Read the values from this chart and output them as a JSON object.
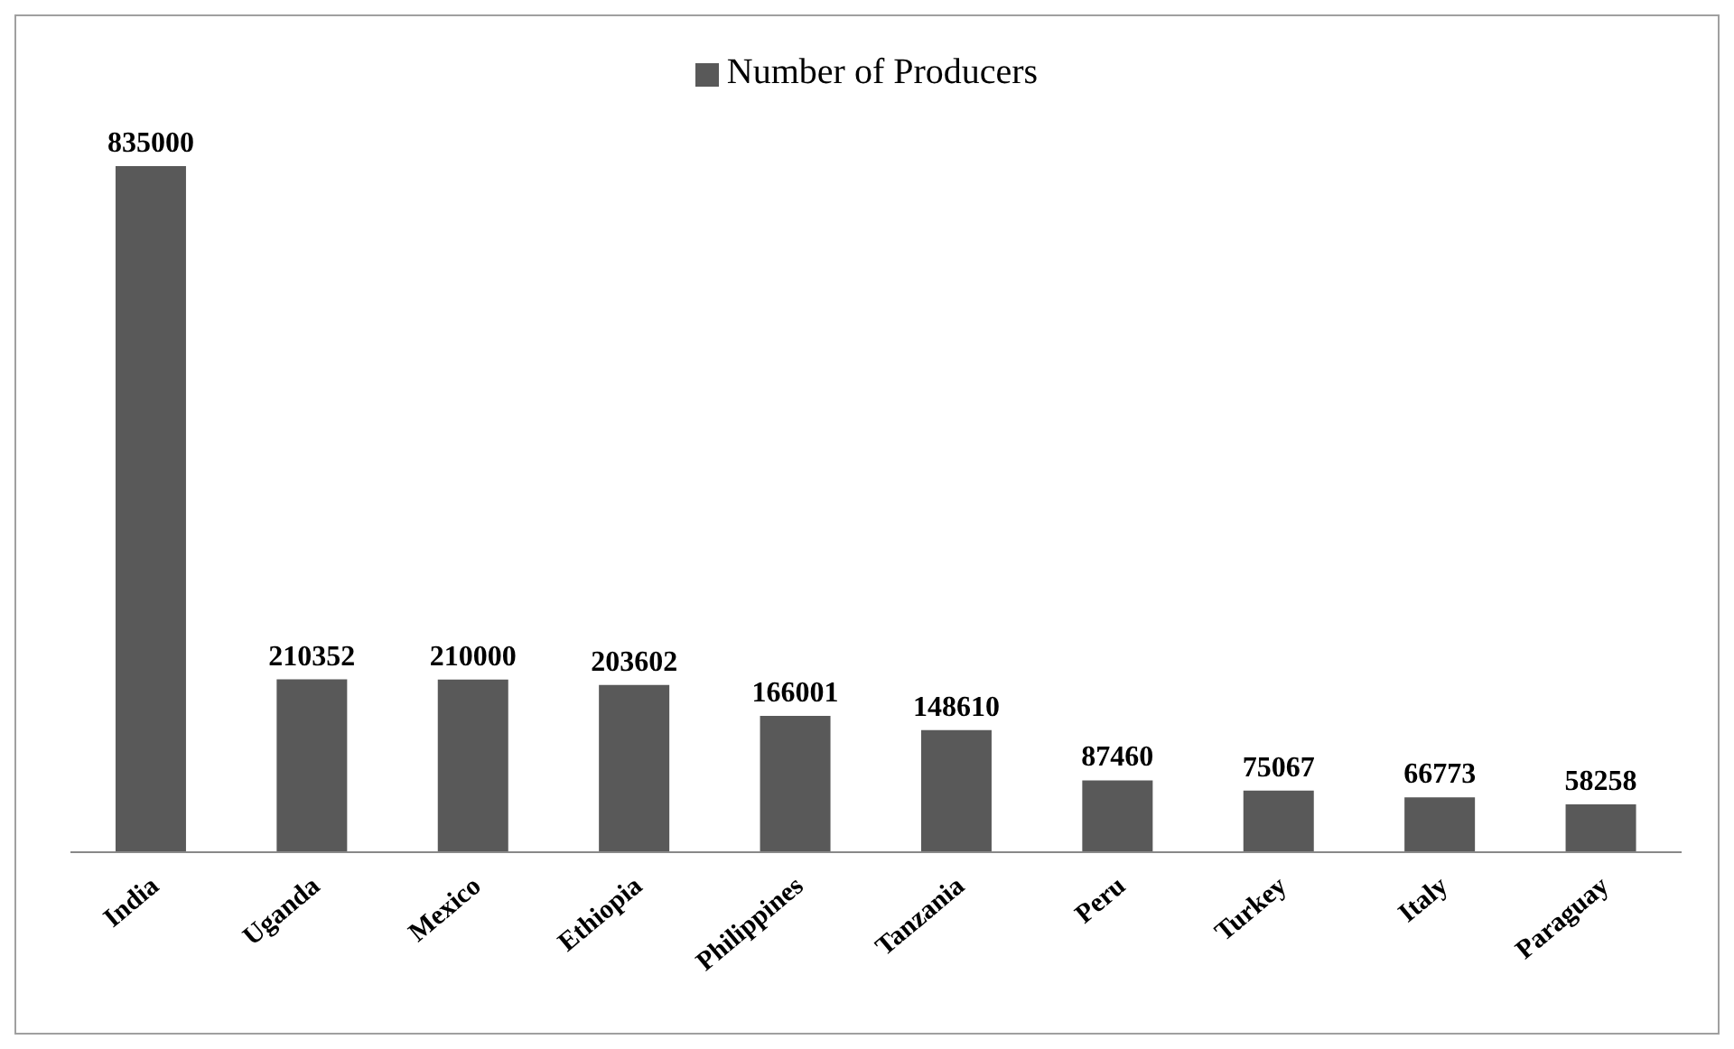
{
  "chart_data": {
    "type": "bar",
    "categories": [
      "India",
      "Uganda",
      "Mexico",
      "Ethiopia",
      "Philippines",
      "Tanzania",
      "Peru",
      "Turkey",
      "Italy",
      "Paraguay"
    ],
    "series": [
      {
        "name": "Number of Producers",
        "color": "#595959",
        "values": [
          835000,
          210352,
          210000,
          203602,
          166001,
          148610,
          87460,
          75067,
          66773,
          58258
        ]
      }
    ],
    "data_labels": true,
    "legend": "top",
    "grid": false
  }
}
